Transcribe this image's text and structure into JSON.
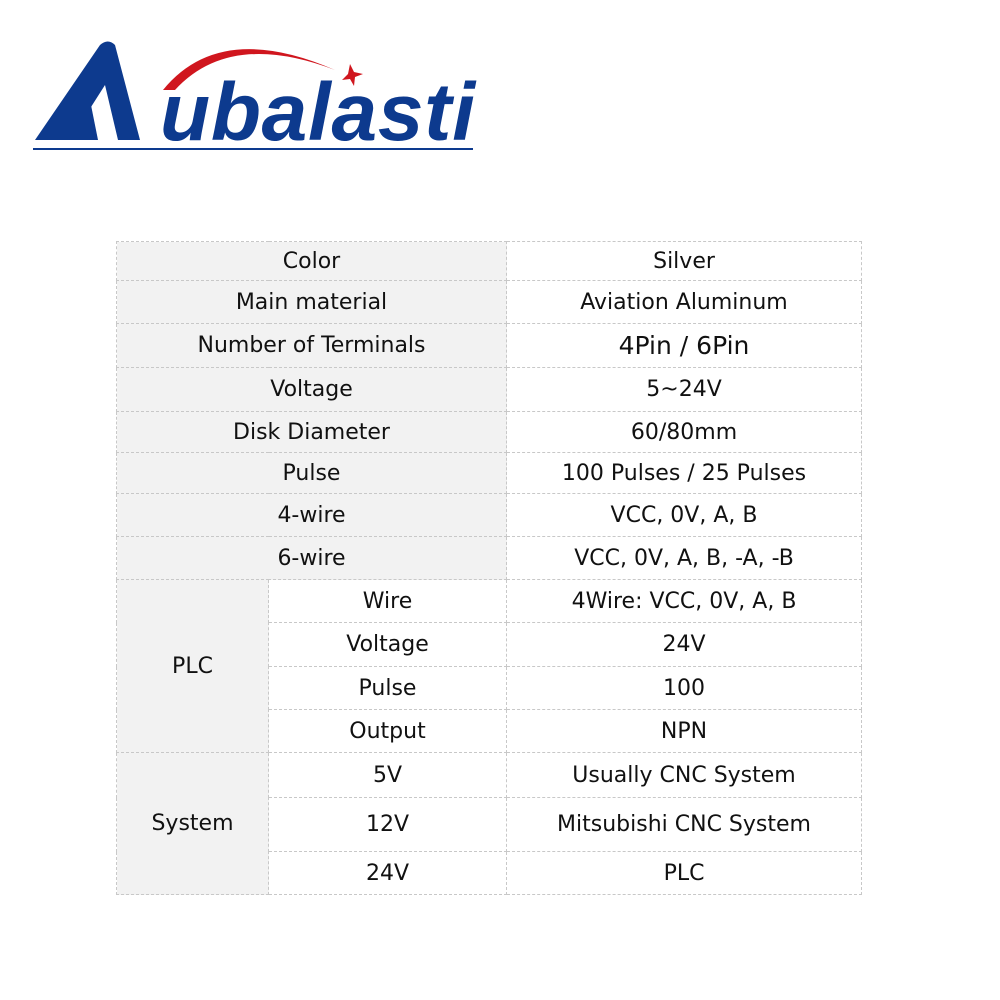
{
  "logo": {
    "text": "Aubalasti",
    "colors": {
      "blue": "#0d3a8e",
      "red": "#d0161e"
    }
  },
  "specs": [
    {
      "label": "Color",
      "value": "Silver"
    },
    {
      "label": "Main material",
      "value": "Aviation Aluminum"
    },
    {
      "label": "Number of Terminals",
      "value": "4Pin / 6Pin"
    },
    {
      "label": "Voltage",
      "value": "5~24V"
    },
    {
      "label": "Disk Diameter",
      "value": "60/80mm"
    },
    {
      "label": "Pulse",
      "value": "100 Pulses / 25 Pulses"
    },
    {
      "label": "4-wire",
      "value": "VCC, 0V, A, B"
    },
    {
      "label": "6-wire",
      "value": "VCC, 0V, A, B, -A, -B"
    }
  ],
  "plc": {
    "label": "PLC",
    "rows": [
      {
        "label": "Wire",
        "value": "4Wire: VCC, 0V, A, B"
      },
      {
        "label": "Voltage",
        "value": "24V"
      },
      {
        "label": "Pulse",
        "value": "100"
      },
      {
        "label": "Output",
        "value": "NPN"
      }
    ]
  },
  "system": {
    "label": "System",
    "rows": [
      {
        "label": "5V",
        "value": "Usually CNC System"
      },
      {
        "label": "12V",
        "value": "Mitsubishi CNC System"
      },
      {
        "label": "24V",
        "value": "PLC"
      }
    ]
  }
}
